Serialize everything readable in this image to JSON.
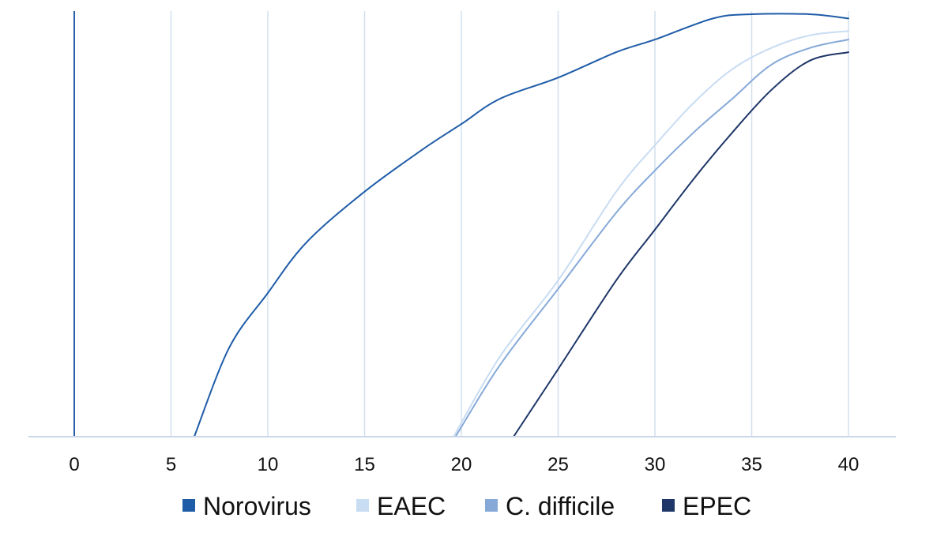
{
  "chart_data": {
    "type": "line",
    "title": "",
    "xlabel": "",
    "ylabel": "",
    "xlim": [
      0,
      40
    ],
    "ylim": [
      0,
      1
    ],
    "x_ticks": [
      0,
      5,
      10,
      15,
      20,
      25,
      30,
      35,
      40
    ],
    "y_axis_visible": false,
    "grid": "vertical",
    "legend_position": "bottom",
    "series": [
      {
        "name": "Norovirus",
        "color": "#1f5ca8",
        "points": [
          [
            6.2,
            0
          ],
          [
            8,
            0.21
          ],
          [
            10,
            0.34
          ],
          [
            12,
            0.46
          ],
          [
            15,
            0.58
          ],
          [
            18,
            0.68
          ],
          [
            20,
            0.74
          ],
          [
            22,
            0.8
          ],
          [
            25,
            0.85
          ],
          [
            28,
            0.91
          ],
          [
            30,
            0.94
          ],
          [
            33,
            0.99
          ],
          [
            35,
            1
          ],
          [
            38,
            1
          ],
          [
            40,
            0.99
          ]
        ]
      },
      {
        "name": "EAEC",
        "color": "#c8dcf2",
        "points": [
          [
            19.6,
            0
          ],
          [
            22,
            0.19
          ],
          [
            25,
            0.37
          ],
          [
            28,
            0.58
          ],
          [
            30,
            0.69
          ],
          [
            32,
            0.79
          ],
          [
            34,
            0.87
          ],
          [
            36,
            0.92
          ],
          [
            38,
            0.95
          ],
          [
            40,
            0.96
          ]
        ]
      },
      {
        "name": "C. difficile",
        "color": "#86a9d8",
        "points": [
          [
            19.7,
            0
          ],
          [
            22,
            0.17
          ],
          [
            25,
            0.35
          ],
          [
            28,
            0.53
          ],
          [
            30,
            0.63
          ],
          [
            32,
            0.72
          ],
          [
            34,
            0.8
          ],
          [
            36,
            0.88
          ],
          [
            38,
            0.92
          ],
          [
            40,
            0.94
          ]
        ]
      },
      {
        "name": "EPEC",
        "color": "#1e3668",
        "points": [
          [
            22.7,
            0
          ],
          [
            25,
            0.16
          ],
          [
            28,
            0.37
          ],
          [
            30,
            0.49
          ],
          [
            32,
            0.61
          ],
          [
            34,
            0.72
          ],
          [
            36,
            0.82
          ],
          [
            38,
            0.89
          ],
          [
            40,
            0.91
          ]
        ]
      }
    ]
  }
}
